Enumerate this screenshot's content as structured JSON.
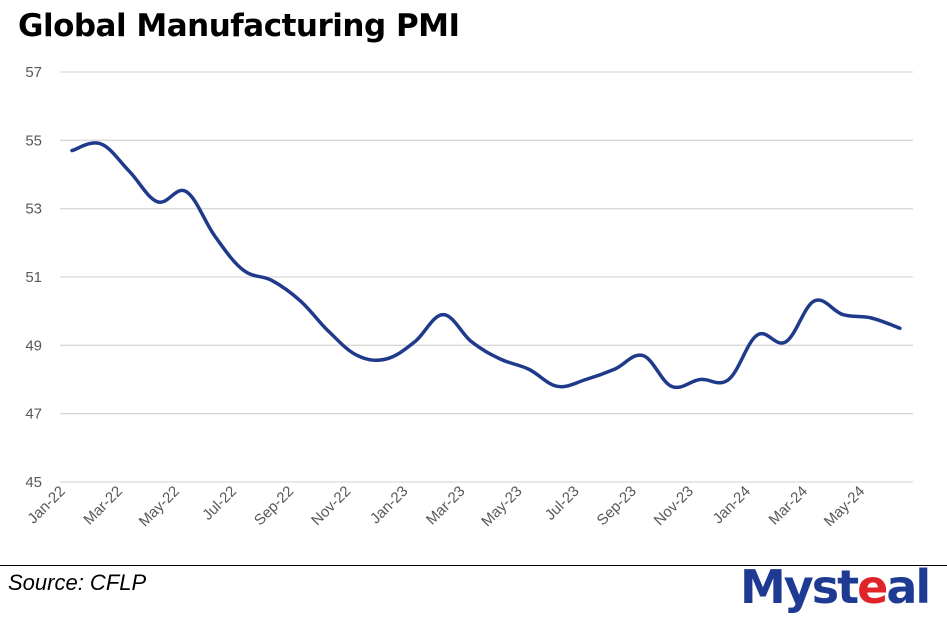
{
  "title": "Global Manufacturing PMI",
  "source": "Source: CFLP",
  "logo": {
    "text_main": "Myst",
    "text_accent": "e",
    "text_end": "al",
    "colors": {
      "main": "#1f3a93",
      "accent": "#e0242a"
    }
  },
  "chart_data": {
    "type": "line",
    "title": "Global Manufacturing PMI",
    "xlabel": "",
    "ylabel": "",
    "ylim": [
      45,
      57
    ],
    "yticks": [
      45,
      47,
      49,
      51,
      53,
      55,
      57
    ],
    "grid": true,
    "x": [
      "Jan-22",
      "Feb-22",
      "Mar-22",
      "Apr-22",
      "May-22",
      "Jun-22",
      "Jul-22",
      "Aug-22",
      "Sep-22",
      "Oct-22",
      "Nov-22",
      "Dec-22",
      "Jan-23",
      "Feb-23",
      "Mar-23",
      "Apr-23",
      "May-23",
      "Jun-23",
      "Jul-23",
      "Aug-23",
      "Sep-23",
      "Oct-23",
      "Nov-23",
      "Dec-23",
      "Jan-24",
      "Feb-24",
      "Mar-24",
      "Apr-24",
      "May-24",
      "Jun-24"
    ],
    "xtick_labels": [
      "Jan-22",
      "Mar-22",
      "May-22",
      "Jul-22",
      "Sep-22",
      "Nov-22",
      "Jan-23",
      "Mar-23",
      "May-23",
      "Jul-23",
      "Sep-23",
      "Nov-23",
      "Jan-24",
      "Mar-24",
      "May-24"
    ],
    "series": [
      {
        "name": "Global Manufacturing PMI",
        "color": "#1f3a8a",
        "values": [
          54.7,
          54.9,
          54.1,
          53.2,
          53.5,
          52.2,
          51.2,
          50.9,
          50.3,
          49.4,
          48.7,
          48.6,
          49.1,
          49.9,
          49.1,
          48.6,
          48.3,
          47.8,
          48.0,
          48.3,
          48.7,
          47.8,
          48.0,
          48.0,
          49.3,
          49.1,
          50.3,
          49.9,
          49.8,
          49.5
        ]
      }
    ]
  }
}
